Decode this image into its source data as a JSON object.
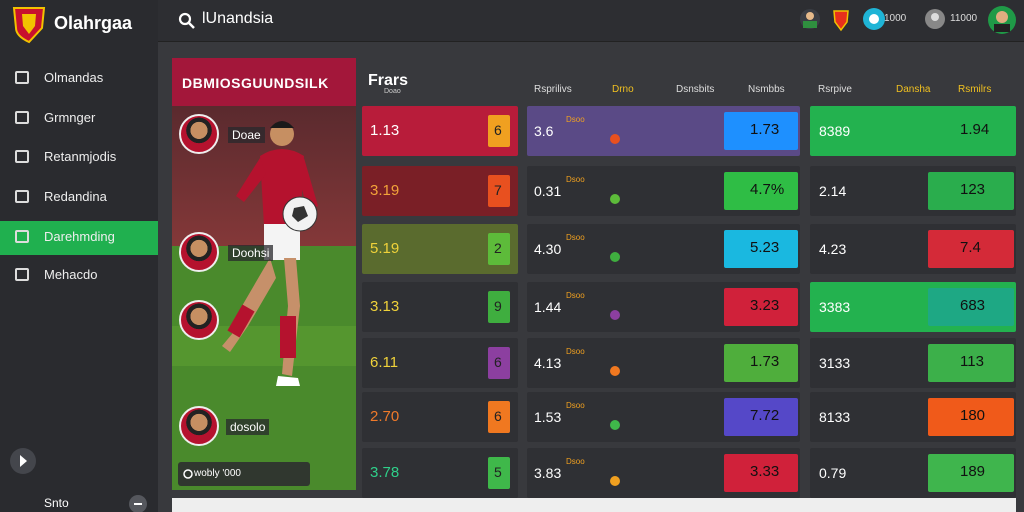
{
  "sidebar": {
    "brand": "Olahrgaa",
    "menu": [
      "Olmandas",
      "Grmnger",
      "Retanmjodis",
      "Redandina",
      "Darehmding",
      "Mehacdo"
    ],
    "footer": "Snto"
  },
  "topbar": {
    "search": "lUnandsia",
    "stats": [
      "1000",
      "11000"
    ]
  },
  "featured": {
    "title": "DBMIOSGUUNDSILK",
    "players": [
      "Doae",
      "Doohsi",
      "dosolo"
    ],
    "footer": "wobly '000"
  },
  "market": {
    "title": "Frars",
    "subtitle": "Doao",
    "headers": [
      "Rsprilivs",
      "Drno",
      "Dsnsbits",
      "Nsmbbs",
      "Rsrpive",
      "Dansha",
      "Rsmilrs"
    ],
    "rows": [
      {
        "odds": "1.13",
        "badge": "6",
        "left": "3.6",
        "tag": "Dsoo",
        "right": "1.73",
        "sum": "8389",
        "total": "1.94"
      },
      {
        "odds": "3.19",
        "badge": "7",
        "left": "0.31",
        "tag": "Dsoo",
        "right": "4.7%",
        "sum": "2.14",
        "total": "123"
      },
      {
        "odds": "5.19",
        "badge": "2",
        "left": "4.30",
        "tag": "Dsoo",
        "right": "5.23",
        "sum": "4.23",
        "total": "7.4"
      },
      {
        "odds": "3.13",
        "badge": "9",
        "left": "1.44",
        "tag": "Dsoo",
        "right": "3.23",
        "sum": "3383",
        "total": "683"
      },
      {
        "odds": "6.11",
        "badge": "6",
        "left": "4.13",
        "tag": "Dsoo",
        "right": "1.73",
        "sum": "3133",
        "total": "113"
      },
      {
        "odds": "2.70",
        "badge": "6",
        "left": "1.53",
        "tag": "Dsoo",
        "right": "7.72",
        "sum": "8133",
        "total": "180"
      },
      {
        "odds": "3.78",
        "badge": "5",
        "left": "3.83",
        "tag": "Dsoo",
        "right": "3.33",
        "sum": "0.79",
        "total": "189"
      }
    ]
  }
}
